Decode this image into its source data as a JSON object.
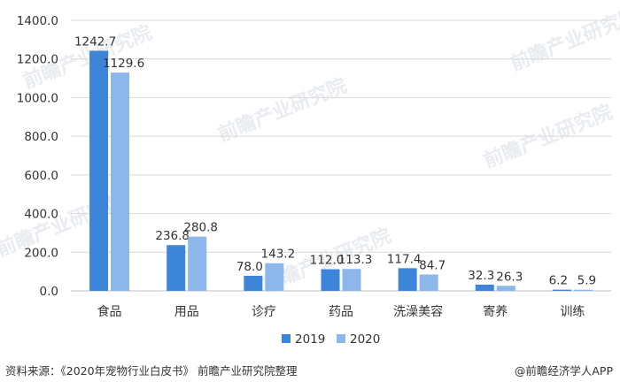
{
  "chart_data": {
    "type": "bar",
    "categories": [
      "食品",
      "用品",
      "诊疗",
      "药品",
      "洗澡美容",
      "寄养",
      "训练"
    ],
    "series": [
      {
        "name": "2019",
        "values": [
          1242.7,
          236.8,
          78.0,
          112.0,
          117.4,
          32.3,
          6.2
        ],
        "labels": [
          "1242.7",
          "236.8",
          "78.0",
          "112.0",
          "117.4",
          "32.3",
          "6.2"
        ]
      },
      {
        "name": "2020",
        "values": [
          1129.6,
          280.8,
          143.2,
          113.3,
          84.7,
          26.3,
          5.9
        ],
        "labels": [
          "1129.6",
          "280.8",
          "143.2",
          "113.3",
          "84.7",
          "26.3",
          "5.9"
        ]
      }
    ],
    "ylim": [
      0,
      1400
    ],
    "yticks": [
      "0.0",
      "200.0",
      "400.0",
      "600.0",
      "800.0",
      "1000.0",
      "1200.0",
      "1400.0"
    ],
    "grid": true,
    "legend_position": "bottom",
    "colors": {
      "2019": "#3d85d8",
      "2020": "#8db6ea"
    }
  },
  "footer": {
    "source": "资料来源：《2020年宠物行业白皮书》 前瞻产业研究院整理",
    "brand": "@前瞻经济学人APP"
  },
  "watermark": "前瞻产业研究院"
}
